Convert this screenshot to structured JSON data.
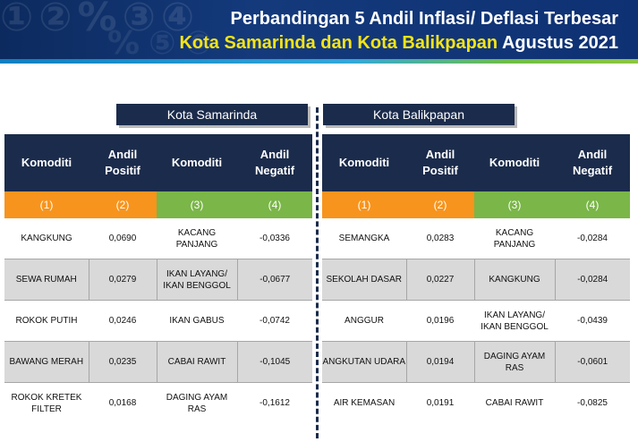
{
  "header": {
    "title_line1": "Perbandingan 5 Andil Inflasi/ Deflasi Terbesar",
    "title_line2_highlight": "Kota Samarinda dan Kota Balikpapan",
    "title_line2_rest": " Agustus 2021"
  },
  "colors": {
    "navy": "#1b2b4b",
    "orange": "#f7941d",
    "green": "#7ab648",
    "yellow": "#f5e417"
  },
  "columns": {
    "c1": "Komoditi",
    "c2a": "Andil",
    "c2b": "Positif",
    "c3": "Komoditi",
    "c4a": "Andil",
    "c4b": "Negatif"
  },
  "numbers": [
    "(1)",
    "(2)",
    "(3)",
    "(4)"
  ],
  "samarinda": {
    "label": "Kota Samarinda",
    "rows": [
      {
        "pos_item": "KANGKUNG",
        "pos_val": "0,0690",
        "neg_item": "KACANG PANJANG",
        "neg_val": "-0,0336"
      },
      {
        "pos_item": "SEWA RUMAH",
        "pos_val": "0,0279",
        "neg_item": "IKAN LAYANG/ IKAN BENGGOL",
        "neg_val": "-0,0677"
      },
      {
        "pos_item": "ROKOK PUTIH",
        "pos_val": "0,0246",
        "neg_item": "IKAN GABUS",
        "neg_val": "-0,0742"
      },
      {
        "pos_item": "BAWANG MERAH",
        "pos_val": "0,0235",
        "neg_item": "CABAI RAWIT",
        "neg_val": "-0,1045"
      },
      {
        "pos_item": "ROKOK KRETEK FILTER",
        "pos_val": "0,0168",
        "neg_item": "DAGING AYAM RAS",
        "neg_val": "-0,1612"
      }
    ]
  },
  "balikpapan": {
    "label": "Kota Balikpapan",
    "rows": [
      {
        "pos_item": "SEMANGKA",
        "pos_val": "0,0283",
        "neg_item": "KACANG PANJANG",
        "neg_val": "-0,0284"
      },
      {
        "pos_item": "SEKOLAH DASAR",
        "pos_val": "0,0227",
        "neg_item": "KANGKUNG",
        "neg_val": "-0,0284"
      },
      {
        "pos_item": "ANGGUR",
        "pos_val": "0,0196",
        "neg_item": "IKAN LAYANG/ IKAN BENGGOL",
        "neg_val": "-0,0439"
      },
      {
        "pos_item": "ANGKUTAN UDARA",
        "pos_val": "0,0194",
        "neg_item": "DAGING AYAM RAS",
        "neg_val": "-0,0601"
      },
      {
        "pos_item": "AIR KEMASAN",
        "pos_val": "0,0191",
        "neg_item": "CABAI RAWIT",
        "neg_val": "-0,0825"
      }
    ]
  }
}
